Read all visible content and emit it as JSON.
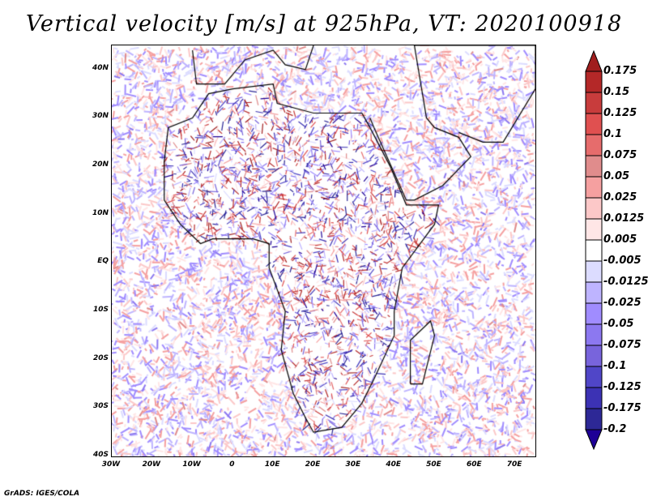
{
  "title": "Vertical velocity [m/s] at 925hPa, VT: 2020100918",
  "credit": "GrADS: IGES/COLA",
  "map": {
    "lon_range": [
      -30,
      75
    ],
    "lat_range": [
      -40,
      45
    ],
    "lat_labels": [
      {
        "v": 40,
        "t": "40N"
      },
      {
        "v": 30,
        "t": "30N"
      },
      {
        "v": 20,
        "t": "20N"
      },
      {
        "v": 10,
        "t": "10N"
      },
      {
        "v": 0,
        "t": "EQ"
      },
      {
        "v": -10,
        "t": "10S"
      },
      {
        "v": -20,
        "t": "20S"
      },
      {
        "v": -30,
        "t": "30S"
      },
      {
        "v": -40,
        "t": "40S"
      }
    ],
    "lon_labels": [
      {
        "v": -30,
        "t": "30W"
      },
      {
        "v": -20,
        "t": "20W"
      },
      {
        "v": -10,
        "t": "10W"
      },
      {
        "v": 0,
        "t": "0"
      },
      {
        "v": 10,
        "t": "10E"
      },
      {
        "v": 20,
        "t": "20E"
      },
      {
        "v": 30,
        "t": "30E"
      },
      {
        "v": 40,
        "t": "40E"
      },
      {
        "v": 50,
        "t": "50E"
      },
      {
        "v": 60,
        "t": "60E"
      },
      {
        "v": 70,
        "t": "70E"
      }
    ]
  },
  "colorbar": {
    "labels": [
      "0.175",
      "0.15",
      "0.125",
      "0.1",
      "0.075",
      "0.05",
      "0.025",
      "0.0125",
      "0.005",
      "-0.005",
      "-0.0125",
      "-0.025",
      "-0.05",
      "-0.075",
      "-0.1",
      "-0.125",
      "-0.175",
      "-0.2"
    ],
    "colors": [
      "#a01e1e",
      "#b42828",
      "#c83c3c",
      "#e05050",
      "#e66c6c",
      "#e08c8c",
      "#f5a0a0",
      "#fcc8c8",
      "#ffe6e6",
      "#ffffff",
      "#dcdcff",
      "#beb4ff",
      "#a08cff",
      "#8c78f0",
      "#7864dc",
      "#5046c8",
      "#3c32b4",
      "#2d2896",
      "#1e0096"
    ]
  }
}
